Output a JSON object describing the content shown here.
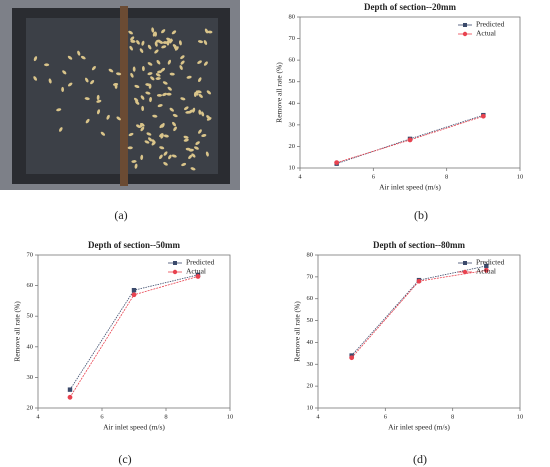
{
  "panel_labels": [
    "(a)",
    "(b)",
    "(c)",
    "(d)"
  ],
  "chart_data": [
    {
      "type": "line",
      "title": "Depth of section--20mm",
      "xlabel": "Air inlet speed (m/s)",
      "ylabel": "Remove all rate (%)",
      "x": [
        5,
        7,
        9
      ],
      "xlim": [
        4,
        10
      ],
      "xticks": [
        4,
        6,
        8,
        10
      ],
      "ylim": [
        10,
        80
      ],
      "yticks": [
        10,
        20,
        30,
        40,
        50,
        60,
        70,
        80
      ],
      "legend": "upper right",
      "series": [
        {
          "name": "Predicted",
          "color": "#3b4a6b",
          "values": [
            12,
            23.5,
            34.5
          ]
        },
        {
          "name": "Actual",
          "color": "#e8424f",
          "values": [
            12.5,
            23,
            34
          ]
        }
      ]
    },
    {
      "type": "line",
      "title": "Depth of section--50mm",
      "xlabel": "Air inlet speed (m/s)",
      "ylabel": "Remove all rate (%)",
      "x": [
        5,
        7,
        9
      ],
      "xlim": [
        4,
        10
      ],
      "xticks": [
        4,
        6,
        8,
        10
      ],
      "ylim": [
        20,
        70
      ],
      "yticks": [
        20,
        30,
        40,
        50,
        60,
        70
      ],
      "legend": "upper right",
      "series": [
        {
          "name": "Predicted",
          "color": "#3b4a6b",
          "values": [
            26,
            58.5,
            63.5
          ]
        },
        {
          "name": "Actual",
          "color": "#e8424f",
          "values": [
            23.5,
            57,
            63
          ]
        }
      ]
    },
    {
      "type": "line",
      "title": "Depth of section--80mm",
      "xlabel": "Air inlet speed (m/s)",
      "ylabel": "Remove all rate (%)",
      "x": [
        5,
        7,
        9
      ],
      "xlim": [
        4,
        10
      ],
      "xticks": [
        4,
        6,
        8,
        10
      ],
      "ylim": [
        10,
        80
      ],
      "yticks": [
        10,
        20,
        30,
        40,
        50,
        60,
        70,
        80
      ],
      "legend": "upper right",
      "series": [
        {
          "name": "Predicted",
          "color": "#3b4a6b",
          "values": [
            34,
            68.5,
            75
          ]
        },
        {
          "name": "Actual",
          "color": "#e8424f",
          "values": [
            33,
            68,
            73
          ]
        }
      ]
    }
  ]
}
